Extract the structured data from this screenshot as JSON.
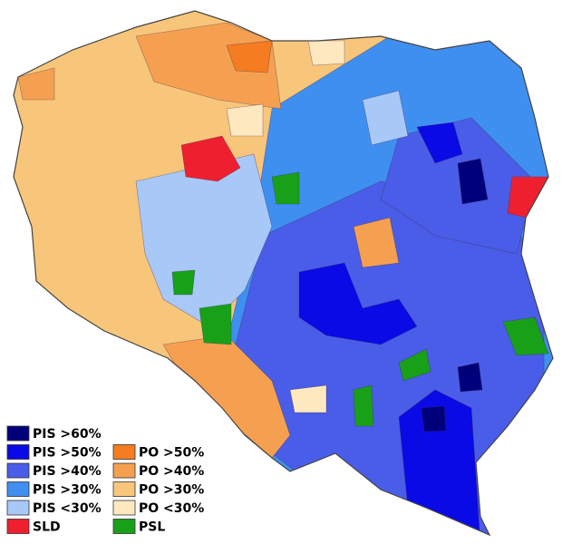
{
  "legend": {
    "left": [
      {
        "label": "PIS >60%",
        "color": "#00007a"
      },
      {
        "label": "PIS >50%",
        "color": "#0a0ae6"
      },
      {
        "label": "PIS >40%",
        "color": "#4a5de8"
      },
      {
        "label": "PIS >30%",
        "color": "#3f8ff0"
      },
      {
        "label": "PIS <30%",
        "color": "#a8c8f8"
      },
      {
        "label": "SLD",
        "color": "#ee2030"
      }
    ],
    "right": [
      {
        "label": "PO >50%",
        "color": "#f57c20"
      },
      {
        "label": "PO >40%",
        "color": "#f5a050"
      },
      {
        "label": "PO >30%",
        "color": "#f8c67a"
      },
      {
        "label": "PO <30%",
        "color": "#fde8c0"
      },
      {
        "label": "PSL",
        "color": "#19a019"
      }
    ]
  }
}
